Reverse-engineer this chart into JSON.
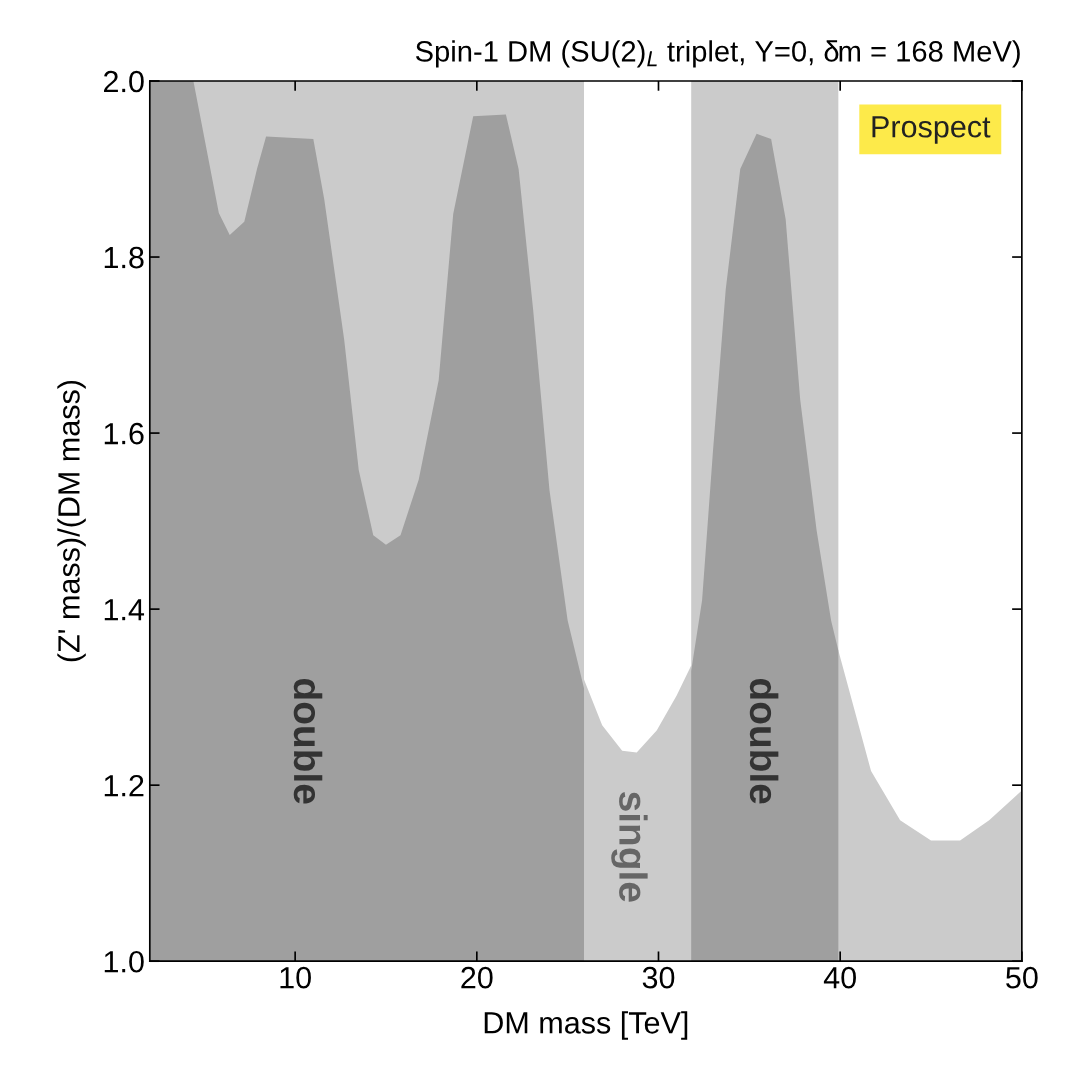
{
  "chart_data": {
    "type": "area",
    "title": "Spin-1 DM (SU(2)$_{L}$ triplet, Y=0, δm = 168 MeV)",
    "xlabel": "DM mass [TeV]",
    "ylabel": "(Z' mass)/(DM mass)",
    "xlim": [
      2,
      50
    ],
    "ylim": [
      1.0,
      2.0
    ],
    "xticks": [
      10,
      20,
      30,
      40,
      50
    ],
    "yticks": [
      {
        "value": 1.0,
        "label": "1.0"
      },
      1.2,
      1.4,
      1.6,
      1.8,
      {
        "value": 2.0,
        "label": "2.0"
      }
    ],
    "grid": false,
    "series": [
      {
        "color": "#cbcbcb",
        "x": [
          2,
          25.9,
          25.9,
          26.9,
          28.0,
          28.8,
          29.9,
          31.0,
          31.8,
          31.8,
          39.9,
          39.9,
          41.7,
          43.3,
          45.0,
          46.6,
          48.2,
          50.0
        ],
        "values": [
          2.0,
          2.0,
          1.32,
          1.268,
          1.239,
          1.237,
          1.262,
          1.302,
          1.336,
          2.0,
          2.0,
          1.353,
          1.216,
          1.16,
          1.137,
          1.137,
          1.16,
          1.194
        ]
      },
      {
        "color": "#9f9f9f",
        "x": [
          2,
          4.4,
          5.8,
          6.4,
          7.2,
          7.9,
          8.4,
          11.0,
          11.6,
          12.7,
          13.5,
          14.3,
          15.0,
          15.8,
          16.8,
          17.9,
          18.7,
          19.8,
          21.6,
          22.3,
          23.1,
          24.0,
          25.0,
          25.9,
          28.8,
          31.8,
          32.4,
          33.0,
          33.7,
          34.5,
          35.4,
          36.2,
          37.0,
          37.8,
          38.7,
          39.5,
          39.9
        ],
        "values": [
          2.0,
          2.0,
          1.85,
          1.825,
          1.84,
          1.9,
          1.937,
          1.934,
          1.866,
          1.706,
          1.558,
          1.484,
          1.473,
          1.484,
          1.547,
          1.66,
          1.849,
          1.96,
          1.962,
          1.9,
          1.74,
          1.535,
          1.387,
          1.31,
          null,
          1.33,
          1.41,
          1.58,
          1.763,
          1.9,
          1.94,
          1.934,
          1.843,
          1.638,
          1.49,
          1.387,
          1.353
        ]
      }
    ],
    "annotations": [
      "double",
      "single",
      "double",
      "Prospect"
    ]
  }
}
